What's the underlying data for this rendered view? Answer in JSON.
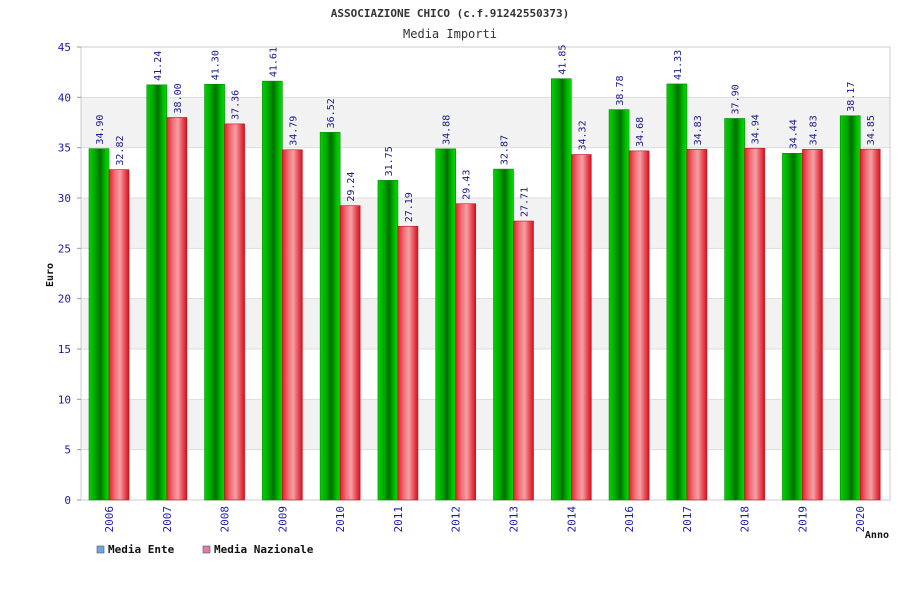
{
  "chart_data": {
    "type": "bar",
    "title": "ASSOCIAZIONE CHICO (c.f.91242550373)",
    "subtitle": "Media Importi",
    "xlabel": "Anno",
    "ylabel": "Euro",
    "ylim": [
      0,
      45
    ],
    "yticks": [
      0,
      5,
      10,
      15,
      20,
      25,
      30,
      35,
      40,
      45
    ],
    "grid": "horizontal bands",
    "legend_position": "bottom-left",
    "categories": [
      "2006",
      "2007",
      "2008",
      "2009",
      "2010",
      "2011",
      "2012",
      "2013",
      "2014",
      "2016",
      "2017",
      "2018",
      "2019",
      "2020"
    ],
    "series": [
      {
        "name": "Media Ente",
        "values": [
          34.9,
          41.24,
          41.3,
          41.61,
          36.52,
          31.75,
          34.88,
          32.87,
          41.85,
          38.78,
          41.33,
          37.9,
          34.44,
          38.17
        ],
        "labels": [
          "34.90",
          "41.24",
          "41.30",
          "41.61",
          "36.52",
          "31.75",
          "34.88",
          "32.87",
          "41.85",
          "38.78",
          "41.33",
          "37.90",
          "34.44",
          "38.17"
        ],
        "bar_color": "#00b000",
        "legend_color": "#6aa5e8"
      },
      {
        "name": "Media Nazionale",
        "values": [
          32.82,
          38.0,
          37.36,
          34.79,
          29.24,
          27.19,
          29.43,
          27.71,
          34.32,
          34.68,
          34.83,
          34.94,
          34.83,
          34.85
        ],
        "labels": [
          "32.82",
          "38.00",
          "37.36",
          "34.79",
          "29.24",
          "27.19",
          "29.43",
          "27.71",
          "34.32",
          "34.68",
          "34.83",
          "34.94",
          "34.83",
          "34.85"
        ],
        "bar_color": "#e8323c",
        "legend_color": "#e07ab0"
      }
    ]
  }
}
